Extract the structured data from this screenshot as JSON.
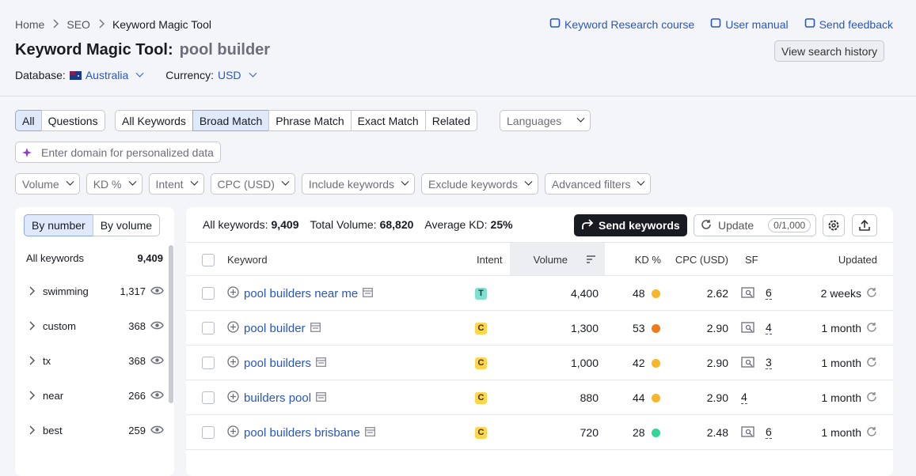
{
  "breadcrumb": [
    "Home",
    "SEO",
    "Keyword Magic Tool"
  ],
  "top_links": [
    "Keyword Research course",
    "User manual",
    "Send feedback"
  ],
  "header": {
    "title": "Keyword Magic Tool:",
    "query": "pool builder",
    "database_label": "Database:",
    "database": "Australia",
    "currency_label": "Currency:",
    "currency": "USD",
    "history_button": "View search history"
  },
  "tabs_type": [
    "All",
    "Questions"
  ],
  "tabs_match": [
    "All Keywords",
    "Broad Match",
    "Phrase Match",
    "Exact Match",
    "Related"
  ],
  "languages": "Languages",
  "domain_input": "Enter domain for personalized data",
  "filters": [
    "Volume",
    "KD %",
    "Intent",
    "CPC (USD)",
    "Include keywords",
    "Exclude keywords",
    "Advanced filters"
  ],
  "sidebar": {
    "toggle": [
      "By number",
      "By volume"
    ],
    "all_label": "All keywords",
    "all_count": "9,409",
    "groups": [
      {
        "name": "swimming",
        "count": "1,317"
      },
      {
        "name": "custom",
        "count": "368"
      },
      {
        "name": "tx",
        "count": "368"
      },
      {
        "name": "near",
        "count": "266"
      },
      {
        "name": "best",
        "count": "259"
      }
    ]
  },
  "summary": {
    "all_label": "All keywords:",
    "all": "9,409",
    "volume_label": "Total Volume:",
    "volume": "68,820",
    "kd_label": "Average KD:",
    "kd": "25%",
    "send_button": "Send keywords",
    "update_button": "Update",
    "update_quota": "0/1,000"
  },
  "table": {
    "columns": [
      "Keyword",
      "Intent",
      "Volume",
      "KD %",
      "CPC (USD)",
      "SF",
      "Updated"
    ],
    "rows": [
      {
        "keyword": "pool builders near me",
        "intent": "T",
        "intent_color": "#7ee0cf",
        "volume": "4,400",
        "kd": "48",
        "kd_color": "#f7b52c",
        "cpc": "2.62",
        "sf": "6",
        "sf_serp": true,
        "updated": "2 weeks"
      },
      {
        "keyword": "pool builder",
        "intent": "C",
        "intent_color": "#ffd54a",
        "volume": "1,300",
        "kd": "53",
        "kd_color": "#f0791c",
        "cpc": "2.90",
        "sf": "4",
        "sf_serp": true,
        "updated": "1 month"
      },
      {
        "keyword": "pool builders",
        "intent": "C",
        "intent_color": "#ffd54a",
        "volume": "1,000",
        "kd": "42",
        "kd_color": "#f7b52c",
        "cpc": "2.90",
        "sf": "3",
        "sf_serp": true,
        "updated": "1 month"
      },
      {
        "keyword": "builders pool",
        "intent": "C",
        "intent_color": "#ffd54a",
        "volume": "880",
        "kd": "44",
        "kd_color": "#f7b52c",
        "cpc": "2.90",
        "sf": "4",
        "sf_serp": false,
        "updated": "1 month"
      },
      {
        "keyword": "pool builders brisbane",
        "intent": "C",
        "intent_color": "#ffd54a",
        "volume": "720",
        "kd": "28",
        "kd_color": "#35d49a",
        "cpc": "2.48",
        "sf": "6",
        "sf_serp": true,
        "updated": "1 month"
      }
    ]
  }
}
